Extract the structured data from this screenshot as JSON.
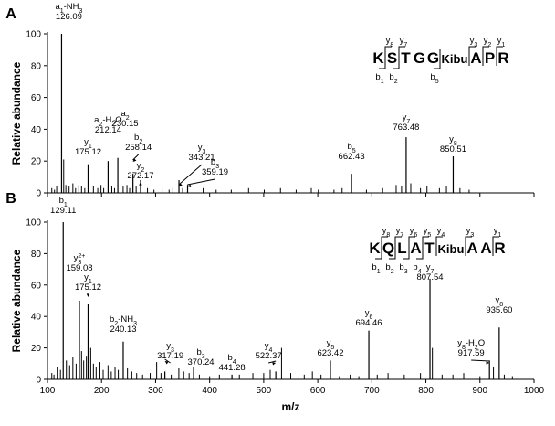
{
  "chart_data": [
    {
      "panel": "A",
      "type": "bar",
      "xlabel": "",
      "ylabel": "Relative abundance",
      "xlim": [
        100,
        1000
      ],
      "ylim": [
        0,
        100
      ],
      "yticks": [
        0,
        20,
        40,
        60,
        80,
        100
      ],
      "sequence": [
        "K",
        "S",
        "T",
        "G",
        "G",
        "Kibu",
        "A",
        "P",
        "R"
      ],
      "fragments_top": [
        {
          "label": "y8",
          "after": 0
        },
        {
          "label": "y7",
          "after": 1
        },
        {
          "label": "y3",
          "after": 5
        },
        {
          "label": "y2",
          "after": 6
        },
        {
          "label": "y1",
          "after": 7
        }
      ],
      "fragments_bottom": [
        {
          "label": "b1",
          "after": 0
        },
        {
          "label": "b2",
          "after": 1
        },
        {
          "label": "b5",
          "after": 4
        }
      ],
      "labeled_peaks": [
        {
          "x": 126.09,
          "y": 100,
          "name": "a1-NH3",
          "mz": "126.09"
        },
        {
          "x": 175.12,
          "y": 18,
          "name": "y1",
          "mz": "175.12"
        },
        {
          "x": 212.14,
          "y": 20,
          "name": "a2-H2O",
          "mz": "212.14"
        },
        {
          "x": 230.15,
          "y": 22,
          "name": "a2",
          "mz": "230.15"
        },
        {
          "x": 258.14,
          "y": 12,
          "name": "b2",
          "mz": "258.14"
        },
        {
          "x": 272.17,
          "y": 5,
          "name": "y2",
          "mz": "272.17"
        },
        {
          "x": 343.21,
          "y": 8,
          "name": "y3",
          "mz": "343.21"
        },
        {
          "x": 359.19,
          "y": 5,
          "name": "b3",
          "mz": "359.19"
        },
        {
          "x": 662.43,
          "y": 12,
          "name": "b5",
          "mz": "662.43"
        },
        {
          "x": 763.48,
          "y": 35,
          "name": "y7",
          "mz": "763.48"
        },
        {
          "x": 850.51,
          "y": 23,
          "name": "y8",
          "mz": "850.51"
        }
      ],
      "minor_peaks": [
        {
          "x": 108,
          "y": 3
        },
        {
          "x": 113,
          "y": 2
        },
        {
          "x": 117,
          "y": 4
        },
        {
          "x": 130,
          "y": 21
        },
        {
          "x": 134,
          "y": 5
        },
        {
          "x": 140,
          "y": 4
        },
        {
          "x": 147,
          "y": 6
        },
        {
          "x": 152,
          "y": 3
        },
        {
          "x": 158,
          "y": 5
        },
        {
          "x": 163,
          "y": 4
        },
        {
          "x": 169,
          "y": 3
        },
        {
          "x": 185,
          "y": 4
        },
        {
          "x": 193,
          "y": 3
        },
        {
          "x": 199,
          "y": 5
        },
        {
          "x": 204,
          "y": 3
        },
        {
          "x": 219,
          "y": 4
        },
        {
          "x": 224,
          "y": 3
        },
        {
          "x": 240,
          "y": 4
        },
        {
          "x": 247,
          "y": 5
        },
        {
          "x": 252,
          "y": 3
        },
        {
          "x": 264,
          "y": 4
        },
        {
          "x": 285,
          "y": 3
        },
        {
          "x": 297,
          "y": 2
        },
        {
          "x": 312,
          "y": 3
        },
        {
          "x": 325,
          "y": 2
        },
        {
          "x": 332,
          "y": 3
        },
        {
          "x": 350,
          "y": 3
        },
        {
          "x": 371,
          "y": 2
        },
        {
          "x": 388,
          "y": 3
        },
        {
          "x": 412,
          "y": 2
        },
        {
          "x": 440,
          "y": 2
        },
        {
          "x": 472,
          "y": 3
        },
        {
          "x": 501,
          "y": 2
        },
        {
          "x": 531,
          "y": 3
        },
        {
          "x": 560,
          "y": 2
        },
        {
          "x": 588,
          "y": 3
        },
        {
          "x": 601,
          "y": 2
        },
        {
          "x": 630,
          "y": 2
        },
        {
          "x": 645,
          "y": 3
        },
        {
          "x": 690,
          "y": 2
        },
        {
          "x": 720,
          "y": 3
        },
        {
          "x": 745,
          "y": 5
        },
        {
          "x": 755,
          "y": 4
        },
        {
          "x": 772,
          "y": 6
        },
        {
          "x": 790,
          "y": 3
        },
        {
          "x": 802,
          "y": 4
        },
        {
          "x": 825,
          "y": 3
        },
        {
          "x": 838,
          "y": 4
        },
        {
          "x": 863,
          "y": 3
        },
        {
          "x": 880,
          "y": 2
        }
      ]
    },
    {
      "panel": "B",
      "type": "bar",
      "xlabel": "m/z",
      "ylabel": "Relative abundance",
      "xlim": [
        100,
        1000
      ],
      "ylim": [
        0,
        100
      ],
      "xticks": [
        100,
        200,
        300,
        400,
        500,
        600,
        700,
        800,
        900,
        1000
      ],
      "yticks": [
        0,
        20,
        40,
        60,
        80,
        100
      ],
      "sequence": [
        "K",
        "Q",
        "L",
        "A",
        "T",
        "Kibu",
        "A",
        "A",
        "R"
      ],
      "fragments_top": [
        {
          "label": "y8",
          "after": 0
        },
        {
          "label": "y7",
          "after": 1
        },
        {
          "label": "y6",
          "after": 2
        },
        {
          "label": "y5",
          "after": 3
        },
        {
          "label": "y4",
          "after": 4
        },
        {
          "label": "y3",
          "after": 5
        },
        {
          "label": "y1",
          "after": 7
        }
      ],
      "fragments_bottom": [
        {
          "label": "b1",
          "after": 0
        },
        {
          "label": "b2",
          "after": 1
        },
        {
          "label": "b3",
          "after": 2
        },
        {
          "label": "b4",
          "after": 3
        }
      ],
      "labeled_peaks": [
        {
          "x": 129.11,
          "y": 100,
          "name": "b1",
          "mz": "129.11"
        },
        {
          "x": 159.08,
          "y": 50,
          "name": "y3 2+",
          "mz": "159.08"
        },
        {
          "x": 175.12,
          "y": 48,
          "name": "y1",
          "mz": "175.12"
        },
        {
          "x": 240.13,
          "y": 24,
          "name": "b2-NH3",
          "mz": "240.13"
        },
        {
          "x": 317.19,
          "y": 5,
          "name": "y3",
          "mz": "317.19"
        },
        {
          "x": 370.24,
          "y": 8,
          "name": "b3",
          "mz": "370.24"
        },
        {
          "x": 441.28,
          "y": 3,
          "name": "b4",
          "mz": "441.28"
        },
        {
          "x": 522.37,
          "y": 5,
          "name": "y4",
          "mz": "522.37"
        },
        {
          "x": 623.42,
          "y": 12,
          "name": "y5",
          "mz": "623.42"
        },
        {
          "x": 694.46,
          "y": 31,
          "name": "y6",
          "mz": "694.46"
        },
        {
          "x": 807.54,
          "y": 64,
          "name": "y7",
          "mz": "807.54"
        },
        {
          "x": 917.59,
          "y": 12,
          "name": "y8-H2O",
          "mz": "917.59"
        },
        {
          "x": 935.6,
          "y": 33,
          "name": "y8",
          "mz": "935.60"
        }
      ],
      "minor_peaks": [
        {
          "x": 108,
          "y": 4
        },
        {
          "x": 112,
          "y": 3
        },
        {
          "x": 118,
          "y": 8
        },
        {
          "x": 124,
          "y": 6
        },
        {
          "x": 135,
          "y": 12
        },
        {
          "x": 141,
          "y": 9
        },
        {
          "x": 147,
          "y": 14
        },
        {
          "x": 153,
          "y": 10
        },
        {
          "x": 163,
          "y": 18
        },
        {
          "x": 167,
          "y": 12
        },
        {
          "x": 172,
          "y": 15
        },
        {
          "x": 180,
          "y": 20
        },
        {
          "x": 185,
          "y": 10
        },
        {
          "x": 190,
          "y": 8
        },
        {
          "x": 197,
          "y": 11
        },
        {
          "x": 203,
          "y": 6
        },
        {
          "x": 212,
          "y": 9
        },
        {
          "x": 218,
          "y": 5
        },
        {
          "x": 225,
          "y": 8
        },
        {
          "x": 231,
          "y": 6
        },
        {
          "x": 248,
          "y": 7
        },
        {
          "x": 256,
          "y": 5
        },
        {
          "x": 265,
          "y": 4
        },
        {
          "x": 276,
          "y": 3
        },
        {
          "x": 290,
          "y": 4
        },
        {
          "x": 302,
          "y": 11
        },
        {
          "x": 310,
          "y": 4
        },
        {
          "x": 329,
          "y": 3
        },
        {
          "x": 343,
          "y": 7
        },
        {
          "x": 352,
          "y": 5
        },
        {
          "x": 362,
          "y": 4
        },
        {
          "x": 381,
          "y": 3
        },
        {
          "x": 400,
          "y": 2
        },
        {
          "x": 418,
          "y": 3
        },
        {
          "x": 455,
          "y": 3
        },
        {
          "x": 480,
          "y": 4
        },
        {
          "x": 500,
          "y": 4
        },
        {
          "x": 512,
          "y": 6
        },
        {
          "x": 533,
          "y": 20
        },
        {
          "x": 550,
          "y": 4
        },
        {
          "x": 575,
          "y": 3
        },
        {
          "x": 590,
          "y": 5
        },
        {
          "x": 606,
          "y": 3
        },
        {
          "x": 640,
          "y": 2
        },
        {
          "x": 660,
          "y": 3
        },
        {
          "x": 676,
          "y": 2
        },
        {
          "x": 710,
          "y": 3
        },
        {
          "x": 730,
          "y": 4
        },
        {
          "x": 760,
          "y": 3
        },
        {
          "x": 790,
          "y": 4
        },
        {
          "x": 812,
          "y": 20
        },
        {
          "x": 830,
          "y": 3
        },
        {
          "x": 850,
          "y": 3
        },
        {
          "x": 870,
          "y": 4
        },
        {
          "x": 900,
          "y": 2
        },
        {
          "x": 925,
          "y": 8
        },
        {
          "x": 945,
          "y": 3
        },
        {
          "x": 960,
          "y": 2
        }
      ]
    }
  ]
}
